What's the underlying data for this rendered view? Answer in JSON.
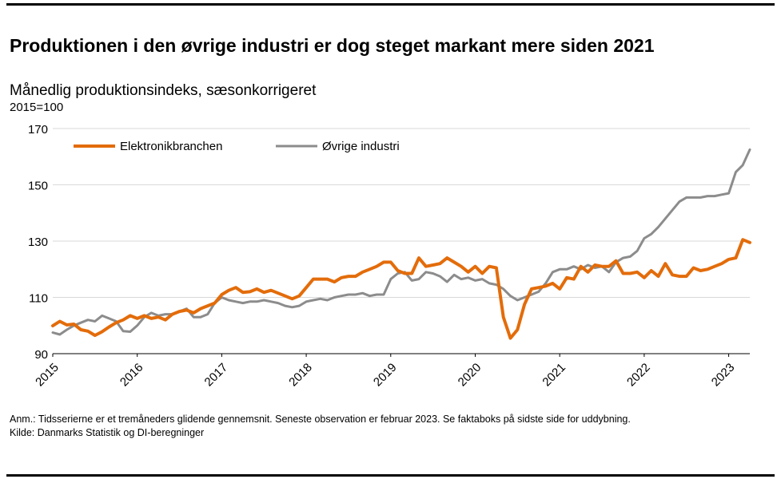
{
  "header": {
    "title": "Produktionen i den øvrige industri er dog steget markant mere siden 2021",
    "subtitle": "Månedlig produktionsindeks, sæsonkorrigeret",
    "unit": "2015=100"
  },
  "footer": {
    "note": "Anm.: Tidsserierne er et tremåneders glidende gennemsnit. Seneste observation er februar 2023. Se faktaboks på sidste side for uddybning.",
    "source": "Kilde:  Danmarks Statistik og DI-beregninger"
  },
  "chart_data": {
    "type": "line",
    "title": "Produktionen i den øvrige industri er dog steget markant mere siden 2021",
    "ylabel": "2015=100",
    "ylim": [
      90,
      170
    ],
    "yticks": [
      90,
      110,
      130,
      150,
      170
    ],
    "xticks": [
      "2015",
      "2016",
      "2017",
      "2018",
      "2019",
      "2020",
      "2021",
      "2022",
      "2023"
    ],
    "x_start": "2015-01",
    "x_end": "2023-02",
    "grid": true,
    "legend": "top-left",
    "series": [
      {
        "name": "Elektronikbranchen",
        "color": "#e36c0a",
        "values": [
          99.9,
          101.5,
          100.2,
          100.5,
          98.5,
          98.0,
          96.5,
          97.8,
          99.5,
          101.0,
          102.0,
          103.5,
          102.5,
          103.5,
          102.5,
          103.0,
          102.0,
          104.0,
          105.0,
          105.5,
          104.5,
          106.0,
          107.0,
          108.0,
          111.0,
          112.5,
          113.5,
          111.8,
          112.0,
          113.0,
          111.8,
          112.5,
          111.5,
          110.5,
          109.5,
          110.5,
          113.5,
          116.5,
          116.5,
          116.5,
          115.5,
          117.0,
          117.5,
          117.5,
          119.0,
          120.0,
          121.0,
          122.5,
          122.5,
          119.5,
          118.5,
          118.5,
          124.0,
          121.0,
          121.5,
          122.0,
          124.0,
          122.5,
          121.0,
          119.0,
          121.0,
          118.5,
          121.0,
          120.5,
          103.0,
          95.5,
          98.5,
          107.5,
          113.0,
          113.5,
          114.0,
          115.0,
          113.0,
          117.0,
          116.5,
          121.0,
          119.0,
          121.5,
          121.0,
          121.0,
          123.0,
          118.5,
          118.5,
          119.0,
          117.0,
          119.5,
          117.5,
          122.0,
          118.0,
          117.5,
          117.5,
          120.5,
          119.5,
          120.0,
          121.0,
          122.0,
          123.5,
          124.0,
          130.5,
          129.5
        ]
      },
      {
        "name": "Øvrige industri",
        "color": "#8c8c8c",
        "values": [
          97.5,
          96.8,
          98.5,
          100.0,
          101.0,
          102.0,
          101.5,
          103.5,
          102.5,
          101.5,
          98.0,
          97.8,
          100.0,
          103.0,
          104.5,
          103.5,
          104.0,
          104.0,
          105.0,
          106.0,
          103.0,
          103.0,
          104.0,
          108.0,
          110.0,
          109.0,
          108.5,
          108.0,
          108.5,
          108.5,
          109.0,
          108.5,
          108.0,
          107.0,
          106.5,
          107.0,
          108.5,
          109.0,
          109.5,
          109.0,
          110.0,
          110.5,
          111.0,
          111.0,
          111.5,
          110.5,
          111.0,
          111.0,
          116.5,
          118.5,
          119.0,
          116.0,
          116.5,
          119.0,
          118.5,
          117.5,
          115.5,
          118.0,
          116.5,
          117.0,
          116.0,
          116.5,
          115.0,
          114.5,
          113.0,
          110.5,
          109.0,
          110.0,
          111.0,
          112.0,
          115.0,
          119.0,
          120.0,
          120.0,
          121.0,
          120.0,
          121.5,
          120.5,
          121.0,
          119.0,
          122.5,
          124.0,
          124.5,
          126.5,
          131.0,
          132.5,
          135.0,
          138.0,
          141.0,
          144.0,
          145.5,
          145.5,
          145.5,
          146.0,
          146.0,
          146.5,
          147.0,
          154.5,
          157.0,
          162.5
        ]
      }
    ]
  }
}
